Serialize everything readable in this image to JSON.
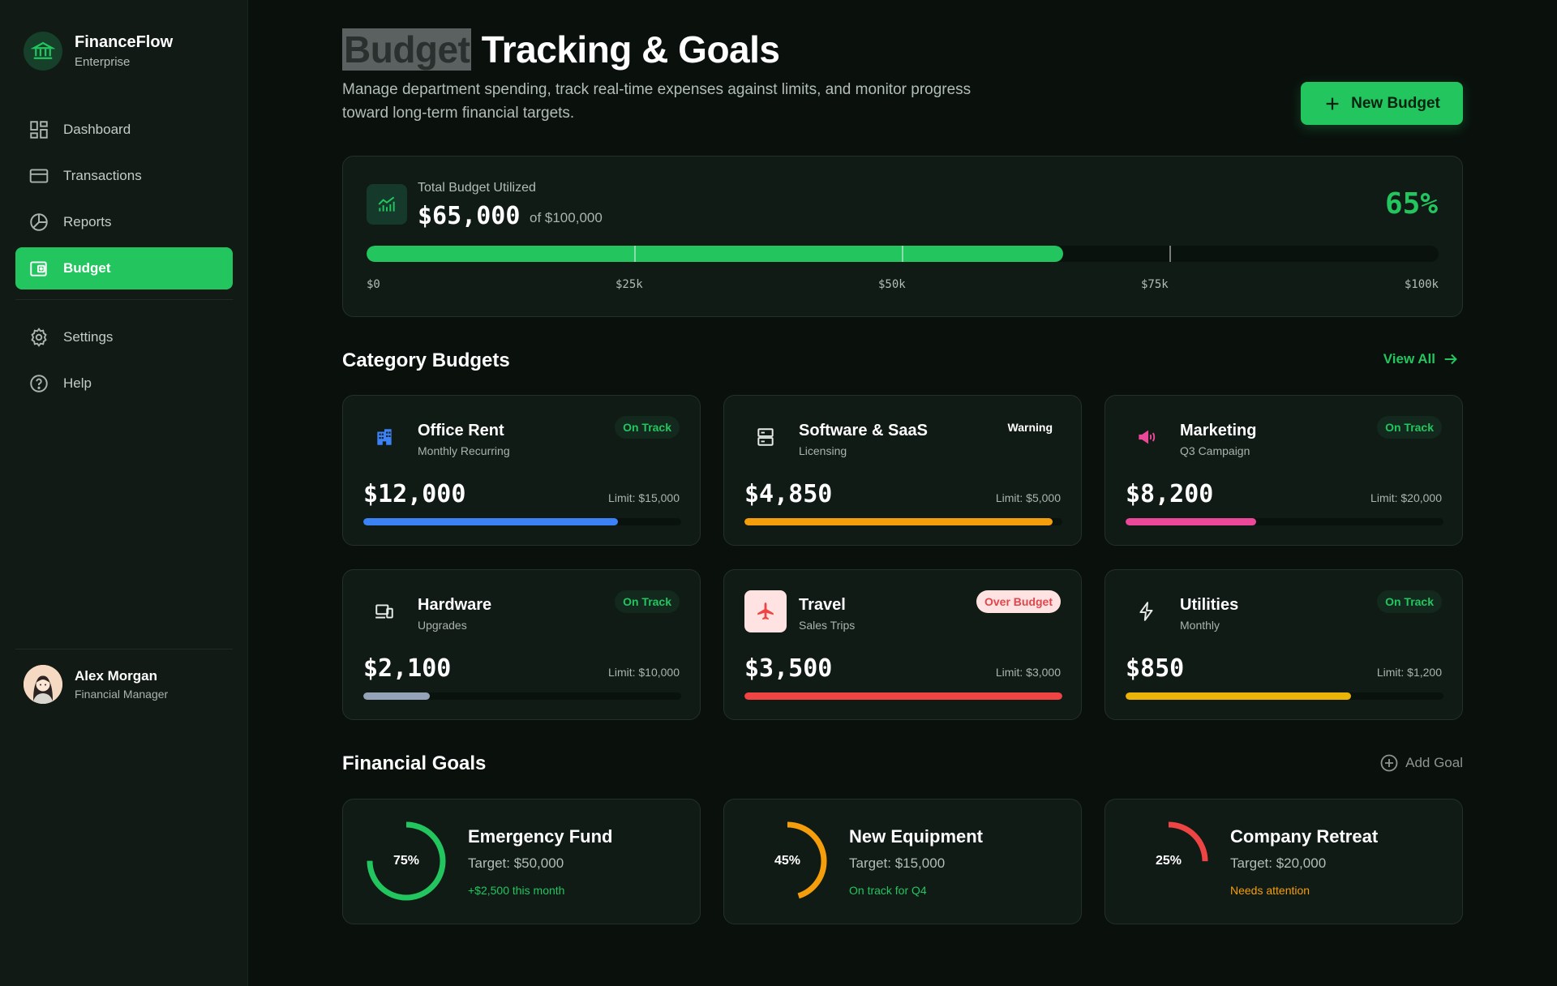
{
  "brand": {
    "name": "FinanceFlow",
    "subtitle": "Enterprise"
  },
  "nav": {
    "items": [
      {
        "label": "Dashboard",
        "icon": "dashboard-icon"
      },
      {
        "label": "Transactions",
        "icon": "credit-card-icon"
      },
      {
        "label": "Reports",
        "icon": "pie-chart-icon"
      },
      {
        "label": "Budget",
        "icon": "wallet-icon",
        "active": true
      }
    ],
    "secondary": [
      {
        "label": "Settings",
        "icon": "gear-icon"
      },
      {
        "label": "Help",
        "icon": "help-icon"
      }
    ]
  },
  "user": {
    "name": "Alex Morgan",
    "role": "Financial Manager"
  },
  "header": {
    "title_highlight": "Budget",
    "title_rest": " Tracking & Goals",
    "description": "Manage department spending, track real-time expenses against limits, and monitor progress toward long-term financial targets.",
    "new_budget_label": "New Budget"
  },
  "total": {
    "label": "Total Budget Utilized",
    "amount": "$65,000",
    "of": "of $100,000",
    "percent_label": "65%",
    "fraction": 0.65,
    "scale": [
      "$0",
      "$25k",
      "$50k",
      "$75k",
      "$100k"
    ]
  },
  "categories": {
    "title": "Category Budgets",
    "view_all": "View All",
    "items": [
      {
        "name": "Office Rent",
        "sub": "Monthly Recurring",
        "status": "On Track",
        "status_type": "ok",
        "amount": "$12,000",
        "limit": "Limit: $15,000",
        "fraction": 0.8,
        "color": "#3b82f6",
        "icon": "building-icon"
      },
      {
        "name": "Software & SaaS",
        "sub": "Licensing",
        "status": "Warning",
        "status_type": "warn",
        "amount": "$4,850",
        "limit": "Limit: $5,000",
        "fraction": 0.97,
        "color": "#f59e0b",
        "icon": "server-icon"
      },
      {
        "name": "Marketing",
        "sub": "Q3 Campaign",
        "status": "On Track",
        "status_type": "ok",
        "amount": "$8,200",
        "limit": "Limit: $20,000",
        "fraction": 0.41,
        "color": "#ec4899",
        "icon": "megaphone-icon"
      },
      {
        "name": "Hardware",
        "sub": "Upgrades",
        "status": "On Track",
        "status_type": "ok",
        "amount": "$2,100",
        "limit": "Limit: $10,000",
        "fraction": 0.21,
        "color": "#94a3b8",
        "icon": "devices-icon"
      },
      {
        "name": "Travel",
        "sub": "Sales Trips",
        "status": "Over Budget",
        "status_type": "over",
        "amount": "$3,500",
        "limit": "Limit: $3,000",
        "fraction": 1.0,
        "color": "#ef4444",
        "icon": "airplane-icon"
      },
      {
        "name": "Utilities",
        "sub": "Monthly",
        "status": "On Track",
        "status_type": "ok",
        "amount": "$850",
        "limit": "Limit: $1,200",
        "fraction": 0.71,
        "color": "#eab308",
        "icon": "lightning-icon"
      }
    ]
  },
  "goals": {
    "title": "Financial Goals",
    "add_label": "Add Goal",
    "items": [
      {
        "name": "Emergency Fund",
        "target": "Target: $50,000",
        "note": "+$2,500 this month",
        "note_color": "#22c55e",
        "percent_label": "75%",
        "fraction": 0.75,
        "color": "#22c55e"
      },
      {
        "name": "New Equipment",
        "target": "Target: $15,000",
        "note": "On track for Q4",
        "note_color": "#22c55e",
        "percent_label": "45%",
        "fraction": 0.45,
        "color": "#f59e0b"
      },
      {
        "name": "Company Retreat",
        "target": "Target: $20,000",
        "note": "Needs attention",
        "note_color": "#f59e0b",
        "percent_label": "25%",
        "fraction": 0.25,
        "color": "#ef4444"
      }
    ]
  }
}
